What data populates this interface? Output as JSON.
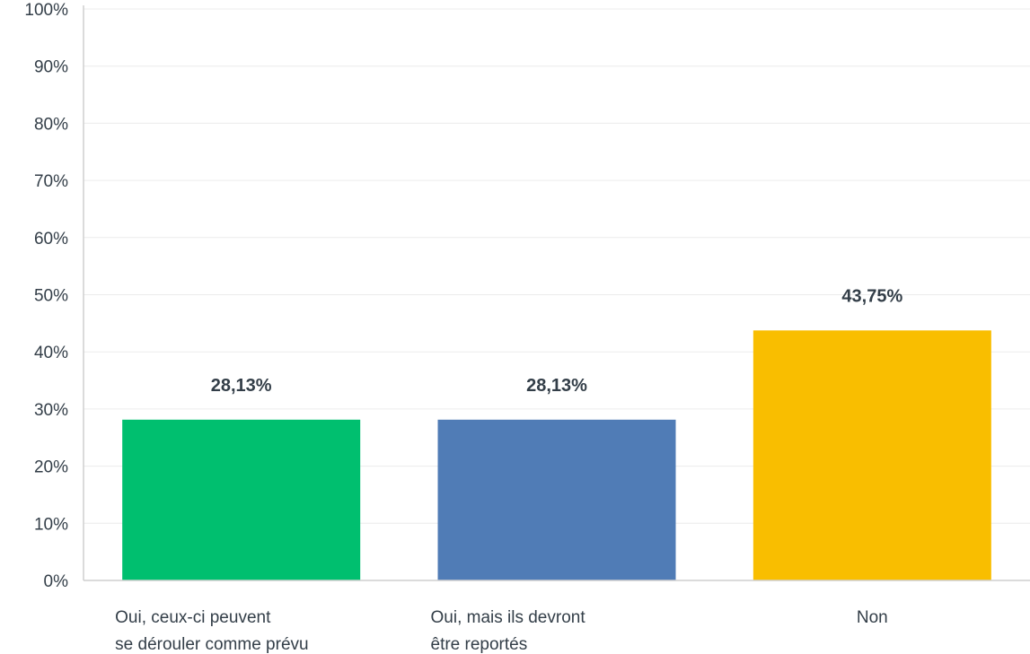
{
  "chart_data": {
    "type": "bar",
    "categories": [
      [
        "Oui, ceux-ci peuvent",
        "se dérouler comme prévu"
      ],
      [
        "Oui, mais ils devront",
        "être reportés"
      ],
      [
        "Non"
      ]
    ],
    "values": [
      28.13,
      28.13,
      43.75
    ],
    "value_labels": [
      "28,13%",
      "28,13%",
      "43,75%"
    ],
    "colors": [
      "#00bf6f",
      "#507cb6",
      "#f9be00"
    ],
    "ylim": [
      0,
      100
    ],
    "yticks": [
      0,
      10,
      20,
      30,
      40,
      50,
      60,
      70,
      80,
      90,
      100
    ],
    "ytick_labels": [
      "0%",
      "10%",
      "20%",
      "30%",
      "40%",
      "50%",
      "60%",
      "70%",
      "80%",
      "90%",
      "100%"
    ],
    "grid": true,
    "title": "",
    "xlabel": "",
    "ylabel": ""
  }
}
